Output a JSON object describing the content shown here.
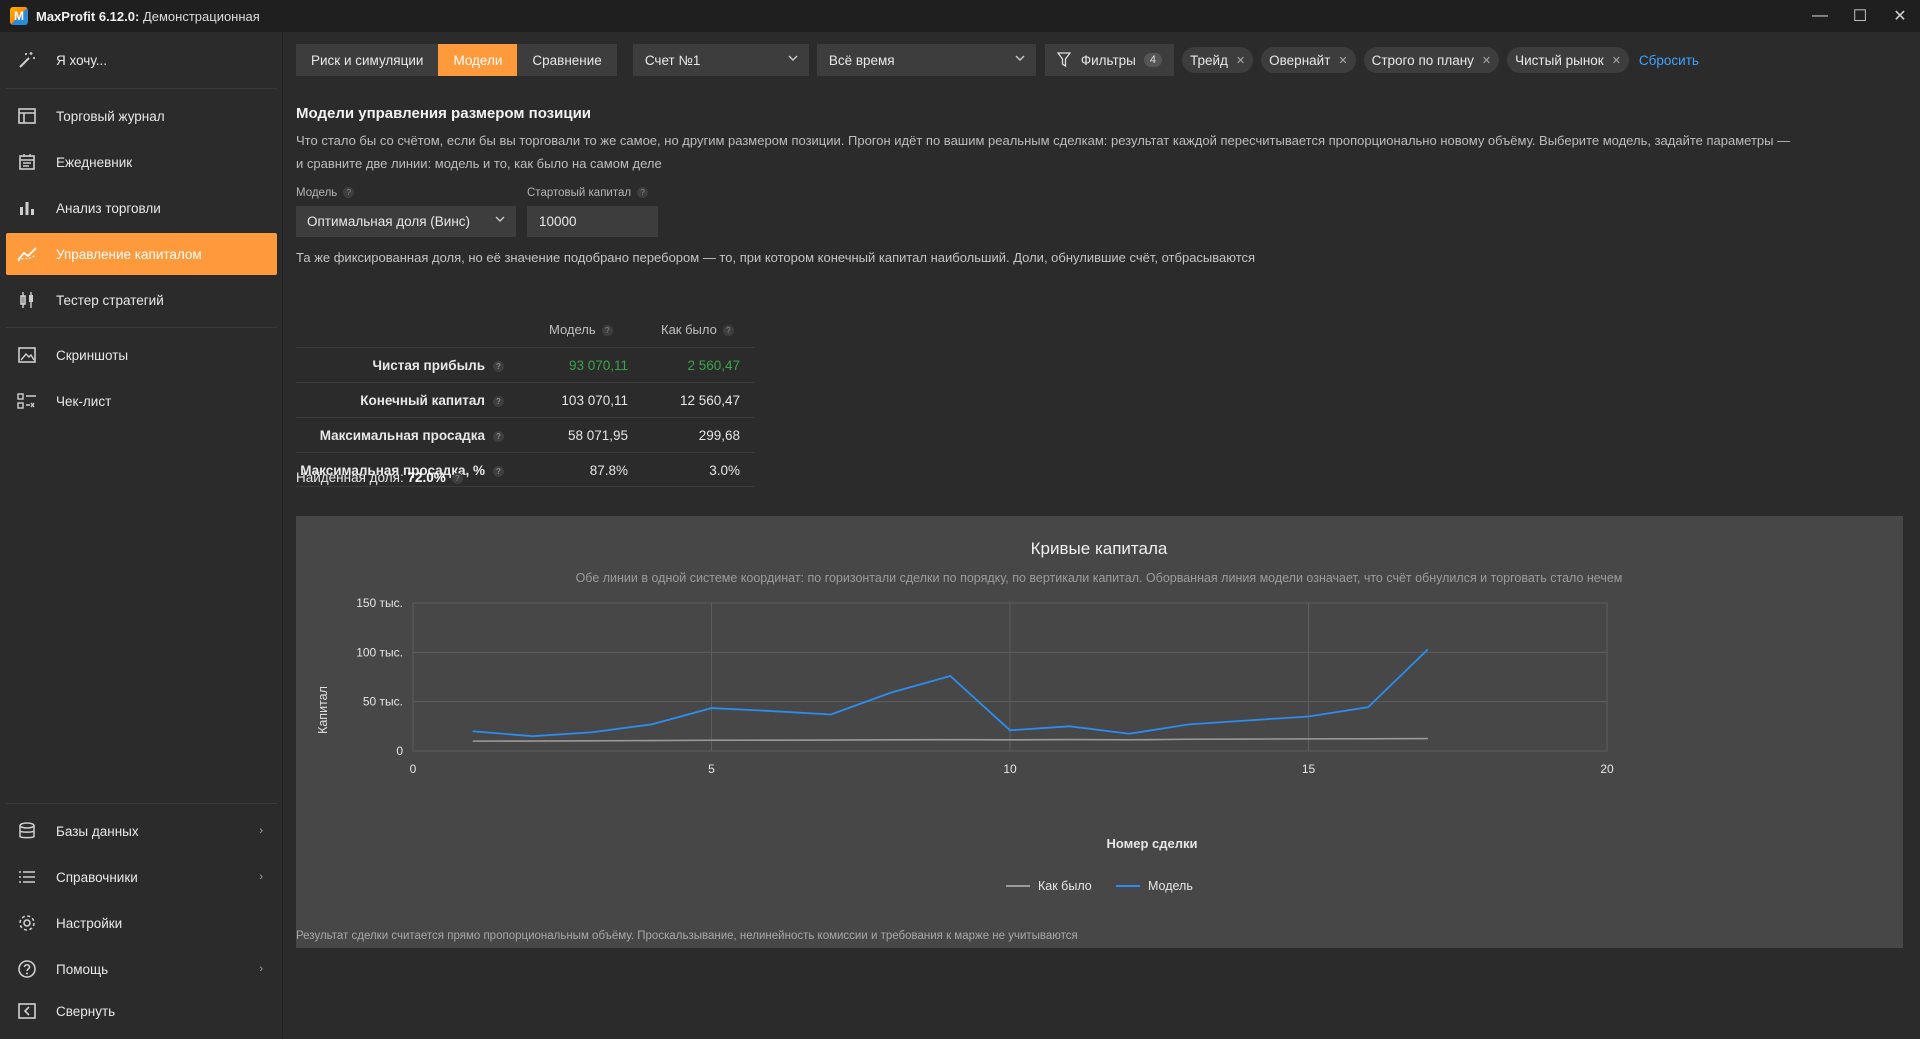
{
  "titlebar": {
    "app_name": "MaxProfit 6.12.0:",
    "edition": "Демонстрационная",
    "minimize": "—",
    "maximize": "☐",
    "close": "✕"
  },
  "sidebar": {
    "top_item": "Я хочу...",
    "items": [
      {
        "label": "Торговый журнал"
      },
      {
        "label": "Ежедневник"
      },
      {
        "label": "Анализ торговли"
      },
      {
        "label": "Управление капиталом"
      },
      {
        "label": "Тестер стратегий"
      },
      {
        "label": "Скриншоты"
      },
      {
        "label": "Чек-лист"
      }
    ],
    "bottom_items": [
      {
        "label": "Базы данных"
      },
      {
        "label": "Справочники"
      },
      {
        "label": "Настройки"
      },
      {
        "label": "Помощь"
      },
      {
        "label": "Свернуть"
      }
    ]
  },
  "toolbar": {
    "tabs": [
      "Риск и симуляции",
      "Модели",
      "Сравнение"
    ],
    "account": "Счет №1",
    "period": "Всё время",
    "filters_label": "Фильтры",
    "filters_count": "4",
    "chips": [
      "Трейд",
      "Овернайт",
      "Строго по плану",
      "Чистый рынок"
    ],
    "reset": "Сбросить"
  },
  "section": {
    "title": "Модели управления размером позиции",
    "desc_line1": "Что стало бы со счётом, если бы вы торговали то же самое, но другим размером позиции. Прогон идёт по вашим реальным сделкам: результат каждой пересчитывается пропорционально новому объёму. Выберите модель, задайте параметры —",
    "desc_line2": "и сравните две линии: модель и то, как было на самом деле"
  },
  "form": {
    "model_label": "Модель",
    "model_value": "Оптимальная доля (Винс)",
    "capital_label": "Стартовый капитал",
    "capital_value": "10000",
    "model_desc": "Та же фиксированная доля, но её значение подобрано перебором — то, при котором конечный капитал наибольший. Доли, обнулившие счёт, отбрасываются"
  },
  "table": {
    "col_model": "Модель",
    "col_was": "Как было",
    "rows": [
      {
        "label": "Чистая прибыль",
        "model": "93 070,11",
        "was": "2 560,47"
      },
      {
        "label": "Конечный капитал",
        "model": "103 070,11",
        "was": "12 560,47"
      },
      {
        "label": "Максимальная просадка",
        "model": "58 071,95",
        "was": "299,68"
      },
      {
        "label": "Максимальная просадка, %",
        "model": "87.8%",
        "was": "3.0%"
      }
    ]
  },
  "found": {
    "label": "Найденная доля:",
    "value": "72.0%"
  },
  "chart_data": {
    "type": "line",
    "title": "Кривые капитала",
    "subtitle": "Обе линии в одной системе координат: по горизонтали сделки по порядку, по вертикали капитал. Оборванная линия модели означает, что счёт обнулился и торговать стало нечем",
    "xlabel": "Номер сделки",
    "ylabel": "Капитал",
    "xlim": [
      0,
      20
    ],
    "ylim": [
      0,
      150000
    ],
    "xticks": [
      "0",
      "5",
      "10",
      "15",
      "20"
    ],
    "yticks": [
      "0",
      "50 тыс.",
      "100 тыс.",
      "150 тыс."
    ],
    "ytick_values": [
      0,
      50000,
      100000,
      150000
    ],
    "xtick_values": [
      0,
      5,
      10,
      15,
      20
    ],
    "grid": true,
    "legend_position": "bottom-center",
    "series": [
      {
        "name": "Как было",
        "color": "#9a9a9a",
        "x": [
          1,
          2,
          3,
          4,
          5,
          6,
          7,
          8,
          9,
          10,
          11,
          12,
          13,
          14,
          15,
          16,
          17
        ],
        "values": [
          10000,
          10100,
          10300,
          10600,
          10900,
          11000,
          11100,
          11300,
          11500,
          11300,
          11600,
          11400,
          11900,
          12100,
          12300,
          12400,
          12560
        ]
      },
      {
        "name": "Модель",
        "color": "#2d8cf0",
        "x": [
          1,
          2,
          3,
          4,
          5,
          6,
          7,
          8,
          9,
          10,
          11,
          12,
          13,
          14,
          15,
          16,
          17
        ],
        "values": [
          20000,
          15000,
          19000,
          27000,
          43500,
          40500,
          37000,
          59000,
          76000,
          21000,
          25000,
          17500,
          27000,
          31000,
          35000,
          44500,
          103070
        ]
      }
    ]
  },
  "footnote": "Результат сделки считается прямо пропорциональным объёму. Проскальзывание, нелинейность комиссии и требования к марже не учитываются"
}
